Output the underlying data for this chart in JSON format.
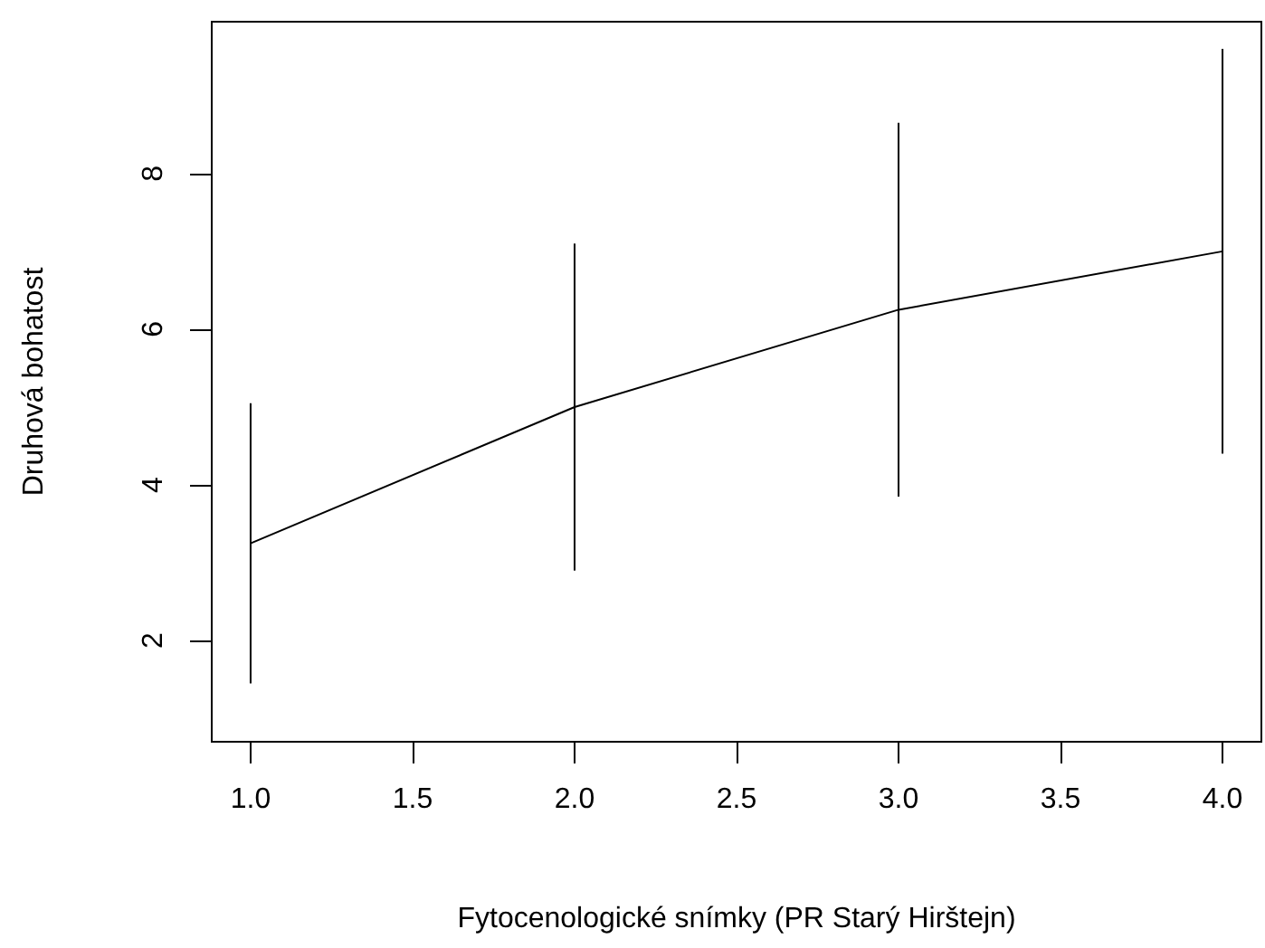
{
  "chart_data": {
    "type": "line",
    "xlabel": "Fytocenologické snímky (PR Starý Hirštejn)",
    "ylabel": "Druhová bohatost",
    "x": [
      1,
      2,
      3,
      4
    ],
    "series": [
      {
        "color": "#000000",
        "values": [
          3.25,
          5.0,
          6.25,
          7.0
        ],
        "errors": [
          1.8,
          2.1,
          2.4,
          2.6
        ]
      }
    ],
    "xlim": [
      0.88,
      4.12
    ],
    "xticks": [
      {
        "value": 1,
        "label": "1.0"
      },
      {
        "value": 1.5,
        "label": "1.5"
      },
      {
        "value": 2,
        "label": "2.0"
      },
      {
        "value": 2.5,
        "label": "2.5"
      },
      {
        "value": 3,
        "label": "3.0"
      },
      {
        "value": 3.5,
        "label": "3.5"
      },
      {
        "value": 4,
        "label": "4.0"
      }
    ],
    "ylim": [
      0.7,
      9.95
    ],
    "yticks": [
      2,
      4,
      6,
      8
    ],
    "grid": false,
    "marker": "none",
    "line_style": "solid"
  }
}
